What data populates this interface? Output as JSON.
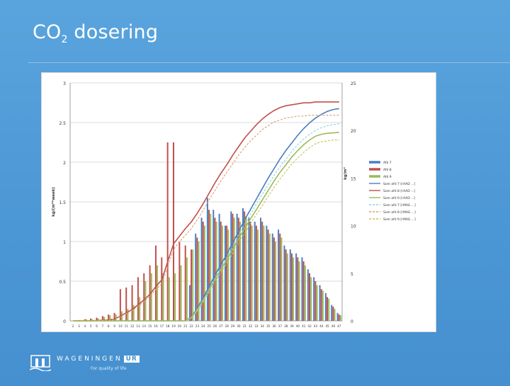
{
  "slide": {
    "title_main": "CO",
    "title_sub": "2",
    "title_rest": " dosering"
  },
  "footer": {
    "brand": "WAGENINGEN",
    "brand_suffix": "UR",
    "tagline": "For quality of life"
  },
  "colors": {
    "blue": "#4a7fc0",
    "red": "#c0504d",
    "green": "#9bbb59",
    "lightblue": "#8fd1e0",
    "grid": "#bfbfbf"
  },
  "icons": {
    "logo": "wageningen-logo-icon"
  },
  "chart_data": {
    "type": "bar",
    "title": "",
    "ylabel": "kg/(m²*week)",
    "y2label": "kg/m²",
    "ylim": [
      0,
      3
    ],
    "y2lim": [
      0,
      25
    ],
    "yticks": [
      "0",
      "0.5",
      "1",
      "1.5",
      "2",
      "2.5",
      "3"
    ],
    "y2ticks": [
      "0",
      "5",
      "10",
      "15",
      "20",
      "25"
    ],
    "grid": true,
    "legend_position": "right",
    "categories": [
      "2",
      "3",
      "4",
      "5",
      "6",
      "7",
      "8",
      "9",
      "10",
      "11",
      "12",
      "13",
      "14",
      "15",
      "16",
      "17",
      "18",
      "19",
      "20",
      "21",
      "22",
      "23",
      "24",
      "25",
      "26",
      "27",
      "28",
      "29",
      "30",
      "31",
      "32",
      "33",
      "34",
      "35",
      "36",
      "37",
      "38",
      "39",
      "40",
      "41",
      "42",
      "43",
      "44",
      "45",
      "46",
      "47"
    ],
    "series": [
      {
        "name": "Afd 7",
        "kind": "bar",
        "color": "#4a7fc0",
        "values": [
          0.0,
          0.0,
          0.0,
          0.0,
          0.0,
          0.0,
          0.0,
          0.0,
          0.0,
          0.0,
          0.0,
          0.0,
          0.0,
          0.0,
          0.0,
          0.0,
          0.0,
          0.0,
          0.0,
          0.0,
          0.45,
          1.1,
          1.3,
          1.55,
          1.4,
          1.35,
          1.2,
          1.38,
          1.35,
          1.42,
          1.3,
          1.25,
          1.3,
          1.2,
          1.1,
          1.15,
          0.95,
          0.9,
          0.85,
          0.8,
          0.65,
          0.55,
          0.45,
          0.35,
          0.2,
          0.1
        ]
      },
      {
        "name": "Afd 8",
        "kind": "bar",
        "color": "#c0504d",
        "values": [
          0.0,
          0.01,
          0.02,
          0.03,
          0.04,
          0.06,
          0.08,
          0.1,
          0.4,
          0.42,
          0.45,
          0.55,
          0.6,
          0.7,
          0.95,
          0.8,
          2.25,
          2.25,
          1.0,
          0.95,
          0.9,
          1.05,
          1.25,
          1.4,
          1.3,
          1.25,
          1.2,
          1.35,
          1.3,
          1.38,
          1.25,
          1.2,
          1.25,
          1.15,
          1.05,
          1.1,
          0.9,
          0.85,
          0.8,
          0.75,
          0.6,
          0.5,
          0.4,
          0.3,
          0.18,
          0.08
        ]
      },
      {
        "name": "Afd 9",
        "kind": "bar",
        "color": "#9bbb59",
        "values": [
          0.0,
          0.01,
          0.02,
          0.02,
          0.03,
          0.05,
          0.07,
          0.08,
          0.12,
          0.15,
          0.2,
          0.3,
          0.5,
          0.6,
          0.7,
          0.6,
          0.55,
          0.6,
          0.7,
          0.8,
          0.9,
          1.0,
          1.2,
          1.35,
          1.25,
          1.2,
          1.15,
          1.3,
          1.25,
          1.32,
          1.2,
          1.15,
          1.2,
          1.1,
          1.0,
          1.05,
          0.85,
          0.8,
          0.75,
          0.7,
          0.55,
          0.45,
          0.38,
          0.28,
          0.15,
          0.07
        ]
      },
      {
        "name": "Som afd 7 [rAAD ...]",
        "kind": "line",
        "color": "#4a7fc0",
        "values": [
          0.0,
          0.0,
          0.0,
          0.0,
          0.0,
          0.0,
          0.0,
          0.0,
          0.0,
          0.0,
          0.0,
          0.0,
          0.0,
          0.0,
          0.0,
          0.0,
          0.0,
          0.0,
          0.0,
          0.0,
          0.4,
          1.3,
          2.4,
          3.6,
          4.8,
          5.9,
          7.0,
          8.2,
          9.4,
          10.6,
          11.7,
          12.8,
          13.9,
          15.0,
          16.0,
          17.0,
          17.9,
          18.7,
          19.5,
          20.2,
          20.8,
          21.3,
          21.7,
          22.0,
          22.2,
          22.3
        ]
      },
      {
        "name": "Som afd 8 [rAAD ...]",
        "kind": "line",
        "color": "#c0504d",
        "values": [
          0.0,
          0.0,
          0.0,
          0.01,
          0.03,
          0.06,
          0.1,
          0.18,
          0.5,
          0.85,
          1.2,
          1.7,
          2.2,
          2.8,
          3.6,
          4.3,
          6.2,
          8.1,
          8.9,
          9.7,
          10.4,
          11.3,
          12.3,
          13.4,
          14.5,
          15.5,
          16.4,
          17.4,
          18.3,
          19.2,
          19.9,
          20.6,
          21.2,
          21.7,
          22.1,
          22.4,
          22.6,
          22.7,
          22.8,
          22.9,
          22.9,
          23.0,
          23.0,
          23.0,
          23.0,
          23.0
        ]
      },
      {
        "name": "Som afd 9 [rAAD ...]",
        "kind": "line",
        "color": "#9bbb59",
        "values": [
          0.0,
          0.0,
          0.0,
          0.0,
          0.0,
          0.0,
          0.0,
          0.0,
          0.0,
          0.0,
          0.0,
          0.0,
          0.0,
          0.0,
          0.0,
          0.0,
          0.0,
          0.0,
          0.0,
          0.0,
          0.35,
          1.2,
          2.2,
          3.3,
          4.4,
          5.4,
          6.4,
          7.5,
          8.6,
          9.7,
          10.7,
          11.7,
          12.7,
          13.7,
          14.7,
          15.6,
          16.4,
          17.2,
          17.9,
          18.5,
          19.0,
          19.4,
          19.6,
          19.7,
          19.75,
          19.8
        ]
      },
      {
        "name": "Som afd 7 [rMAG ...]",
        "kind": "dashed",
        "color": "#8fd1e0",
        "values": [
          0.0,
          0.0,
          0.0,
          0.0,
          0.0,
          0.0,
          0.0,
          0.0,
          0.0,
          0.0,
          0.0,
          0.0,
          0.0,
          0.0,
          0.0,
          0.0,
          0.0,
          0.0,
          0.0,
          0.0,
          0.3,
          1.1,
          2.1,
          3.2,
          4.4,
          5.5,
          6.6,
          7.8,
          9.0,
          10.1,
          11.2,
          12.3,
          13.3,
          14.3,
          15.3,
          16.2,
          17.0,
          17.8,
          18.5,
          19.1,
          19.6,
          20.0,
          20.3,
          20.5,
          20.6,
          20.7
        ]
      },
      {
        "name": "Som afd 8 [rMAG ...]",
        "kind": "dashed",
        "color": "#d8a070",
        "values": [
          0.0,
          0.0,
          0.0,
          0.01,
          0.02,
          0.05,
          0.09,
          0.15,
          0.45,
          0.78,
          1.1,
          1.55,
          2.0,
          2.6,
          3.3,
          3.9,
          5.7,
          7.5,
          8.3,
          9.0,
          9.7,
          10.6,
          11.6,
          12.7,
          13.7,
          14.7,
          15.6,
          16.5,
          17.4,
          18.2,
          18.9,
          19.5,
          20.1,
          20.5,
          20.9,
          21.1,
          21.3,
          21.4,
          21.5,
          21.5,
          21.6,
          21.6,
          21.6,
          21.6,
          21.6,
          21.6
        ]
      },
      {
        "name": "Som afd 9 [rMAG ...]",
        "kind": "dashed",
        "color": "#c8c060",
        "values": [
          0.0,
          0.0,
          0.0,
          0.0,
          0.0,
          0.0,
          0.0,
          0.0,
          0.0,
          0.0,
          0.0,
          0.0,
          0.0,
          0.0,
          0.0,
          0.0,
          0.0,
          0.0,
          0.0,
          0.0,
          0.3,
          1.0,
          2.0,
          3.0,
          4.1,
          5.1,
          6.1,
          7.1,
          8.2,
          9.2,
          10.2,
          11.2,
          12.1,
          13.1,
          14.0,
          14.9,
          15.7,
          16.5,
          17.1,
          17.7,
          18.2,
          18.6,
          18.8,
          18.9,
          19.0,
          19.0
        ]
      }
    ]
  }
}
